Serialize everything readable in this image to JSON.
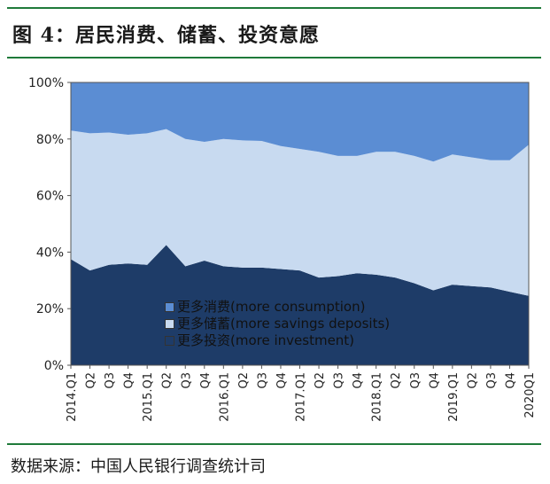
{
  "header": {
    "title": "图 4：居民消费、储蓄、投资意愿"
  },
  "footer": {
    "source": "数据来源：中国人民银行调查统计司"
  },
  "colors": {
    "consumption": "#5b8dd3",
    "savings": "#c8daf0",
    "investment": "#1e3c68",
    "rule": "#1f7a3a"
  },
  "chart_data": {
    "type": "area",
    "stacked": true,
    "title": "",
    "xlabel": "",
    "ylabel": "",
    "ylim": [
      0,
      100
    ],
    "y_unit": "%",
    "y_ticks": [
      "0%",
      "20%",
      "40%",
      "60%",
      "80%",
      "100%"
    ],
    "x_tick_labels": [
      "2014.Q1",
      "Q2",
      "Q3",
      "Q4",
      "2015.Q1",
      "Q2",
      "Q3",
      "Q4",
      "2016.Q1",
      "Q2",
      "Q3",
      "Q4",
      "2017.Q1",
      "Q2",
      "Q3",
      "Q4",
      "2018.Q1",
      "Q2",
      "Q3",
      "Q4",
      "2019.Q1",
      "Q2",
      "Q3",
      "Q4",
      "2020Q1"
    ],
    "x": [
      "2014.Q1",
      "2014.Q2",
      "2014.Q3",
      "2014.Q4",
      "2015.Q1",
      "2015.Q2",
      "2015.Q3",
      "2015.Q4",
      "2016.Q1",
      "2016.Q2",
      "2016.Q3",
      "2016.Q4",
      "2017.Q1",
      "2017.Q2",
      "2017.Q3",
      "2017.Q4",
      "2018.Q1",
      "2018.Q2",
      "2018.Q3",
      "2018.Q4",
      "2019.Q1",
      "2019.Q2",
      "2019.Q3",
      "2019.Q4",
      "2020Q1"
    ],
    "series": [
      {
        "name": "更多投资(more investment)",
        "values": [
          37.5,
          33.5,
          35.5,
          36,
          35.5,
          42.5,
          35,
          37,
          35,
          34.5,
          34.5,
          34,
          33.5,
          31,
          31.5,
          32.5,
          32,
          31,
          29,
          26.5,
          28.5,
          28,
          27.5,
          26,
          24.5
        ]
      },
      {
        "name": "更多储蓄(more savings deposits)",
        "values": [
          45.5,
          48.5,
          46.8,
          45.5,
          46.5,
          41,
          45,
          42,
          45,
          45,
          44.8,
          43.5,
          43,
          44.5,
          42.5,
          41.5,
          43.5,
          44.5,
          45,
          45.5,
          46,
          45.5,
          45,
          46.5,
          53.5
        ]
      },
      {
        "name": "更多消费(more consumption)",
        "values": [
          17,
          18,
          17.7,
          18.5,
          18,
          16.5,
          20,
          21,
          20,
          20.5,
          20.7,
          22.5,
          23.5,
          24.5,
          26,
          26,
          24.5,
          24.5,
          26,
          28,
          25.5,
          26.5,
          27.5,
          27.5,
          22
        ]
      }
    ],
    "legend": [
      {
        "key": "consumption",
        "label": "更多消费(more consumption)"
      },
      {
        "key": "savings",
        "label": "更多储蓄(more savings deposits)"
      },
      {
        "key": "investment",
        "label": "更多投资(more investment)"
      }
    ],
    "legend_position": "inside-bottom-left",
    "grid": false
  }
}
